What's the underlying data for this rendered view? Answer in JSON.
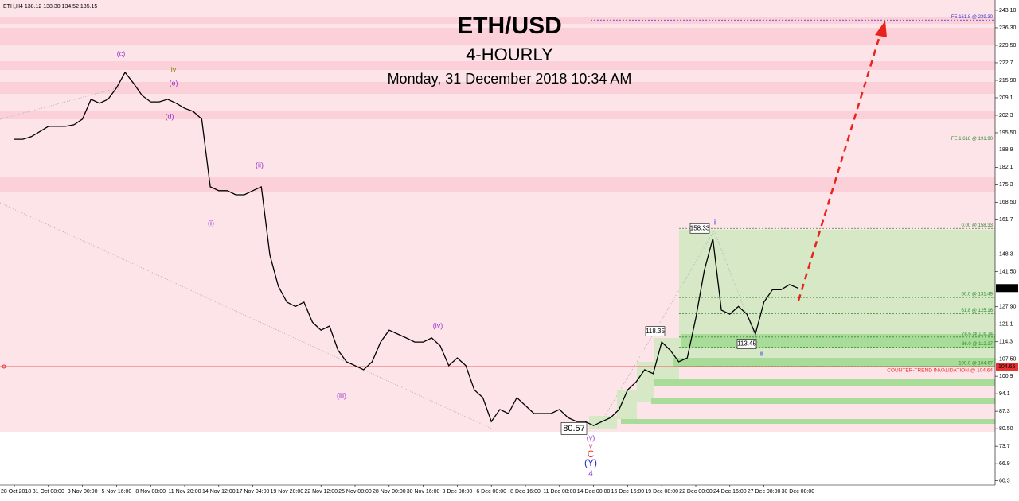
{
  "header": "ETH,H4  138.12 138.30 134.52 135.15",
  "chart_data": {
    "type": "line",
    "title": "ETH/USD",
    "subtitle": "4-HOURLY",
    "date": "Monday, 31 December 2018 10:34 AM",
    "categories": [
      "28 Oct 2018",
      null,
      null,
      null,
      "31 Oct 08:00",
      null,
      null,
      null,
      "3 Nov 00:00",
      null,
      null,
      null,
      "5 Nov 16:00",
      null,
      null,
      null,
      "8 Nov 08:00",
      null,
      null,
      null,
      "11 Nov 20:00",
      null,
      null,
      null,
      "14 Nov 12:00",
      null,
      null,
      null,
      "17 Nov 04:00",
      null,
      null,
      null,
      "19 Nov 20:00",
      null,
      null,
      null,
      "22 Nov 12:00",
      null,
      null,
      null,
      "25 Nov 08:00",
      null,
      null,
      null,
      "28 Nov 00:00",
      null,
      null,
      null,
      "30 Nov 16:00",
      null,
      null,
      null,
      "3 Dec 08:00",
      null,
      null,
      null,
      "6 Dec 00:00",
      null,
      null,
      null,
      "8 Dec 16:00",
      null,
      null,
      null,
      "11 Dec 08:00",
      null,
      null,
      null,
      "14 Dec 00:00",
      null,
      null,
      null,
      "16 Dec 16:00",
      null,
      null,
      null,
      "19 Dec 08:00",
      null,
      null,
      null,
      "22 Dec 00:00",
      null,
      null,
      null,
      "24 Dec 16:00",
      null,
      null,
      null,
      "27 Dec 08:00",
      null,
      null,
      null,
      "30 Dec 08:00"
    ],
    "series": [
      {
        "color": "#000000",
        "values": [
          193,
          193,
          194,
          196,
          198,
          198,
          198,
          198.6,
          200.8,
          208.5,
          207,
          208.5,
          213,
          219,
          214.7,
          210,
          207.5,
          207.5,
          208.5,
          207,
          205,
          203.8,
          200.8,
          174.5,
          173,
          173,
          171.4,
          171.4,
          173,
          174.5,
          148,
          135.8,
          129.7,
          128,
          129.7,
          121.9,
          118.8,
          120.4,
          111,
          106.5,
          105,
          103.4,
          106.5,
          114.2,
          118.8,
          117.3,
          115.8,
          114.2,
          114.2,
          115.8,
          112.7,
          105,
          108,
          105,
          95.6,
          92.6,
          83.3,
          88,
          86.4,
          92.6,
          89.5,
          86.4,
          86.4,
          86.4,
          88,
          84.8,
          83.3,
          83.3,
          81.7,
          83.3,
          84.8,
          88,
          95.6,
          98.7,
          103.4,
          101.9,
          114.2,
          111,
          106.5,
          108,
          123.5,
          142,
          154.4,
          126.6,
          125,
          128,
          125,
          117.3,
          129.7,
          134.5,
          134.5,
          136.5,
          135.15
        ]
      }
    ],
    "ylim": [
      58.6,
      247.1
    ],
    "yticks": [
      {
        "value": 243.1,
        "label": "243.10"
      },
      {
        "value": 236.3,
        "label": "236.30"
      },
      {
        "value": 229.5,
        "label": "229.50"
      },
      222.7,
      {
        "value": 215.9,
        "label": "215.90"
      },
      209.1,
      202.3,
      {
        "value": 195.5,
        "label": "195.50"
      },
      188.9,
      182.1,
      175.3,
      {
        "value": 168.5,
        "label": "168.50"
      },
      161.7,
      148.3,
      {
        "value": 141.5,
        "label": "141.50"
      },
      {
        "value": 127.9,
        "label": "127.90"
      },
      121.1,
      114.3,
      {
        "value": 107.5,
        "label": "107.50"
      },
      100.9,
      94.1,
      87.3,
      {
        "value": 80.5,
        "label": "80.50"
      },
      73.7,
      66.9,
      60.3
    ],
    "levels": [
      {
        "value": 239.3,
        "label": "FE 161.8 @ 239.30",
        "color": "#3333cc"
      },
      {
        "value": 191.9,
        "label": "FE 1.618 @ 191.90",
        "color": "#2e8b2e"
      },
      {
        "value": 158.33,
        "label": "0.00 @ 158.33",
        "color": "#2e8b2e"
      },
      {
        "value": 131.49,
        "label": "50.0 @ 131.49",
        "color": "#2e8b2e"
      },
      {
        "value": 125.16,
        "label": "61.8 @ 125.16",
        "color": "#2e8b2e"
      },
      {
        "value": 116.14,
        "label": "78.6 @ 116.14",
        "color": "#2e8b2e"
      },
      {
        "value": 112.17,
        "label": "86.0 @ 112.17",
        "color": "#2e8b2e"
      },
      {
        "value": 104.67,
        "label": "100.0 @ 104.67",
        "color": "#2e8b2e"
      }
    ],
    "invalidation_text": "COUNTER-TREND INVALIDATION @ 104.64",
    "price_tags": [
      {
        "value": 104.65,
        "color": "#e8312f"
      },
      {
        "value": 135.15,
        "color": "#000000"
      }
    ],
    "chart_tags": [
      158.33,
      118.35,
      113.45,
      80.57
    ],
    "wave_labels": [
      "(c)",
      "iv",
      "(e)",
      "(d)",
      "(ii)",
      "(i)",
      "(iii)",
      "(iv)",
      "(v)",
      "v",
      "C",
      "(Y)",
      "4",
      "i",
      "ii"
    ]
  }
}
